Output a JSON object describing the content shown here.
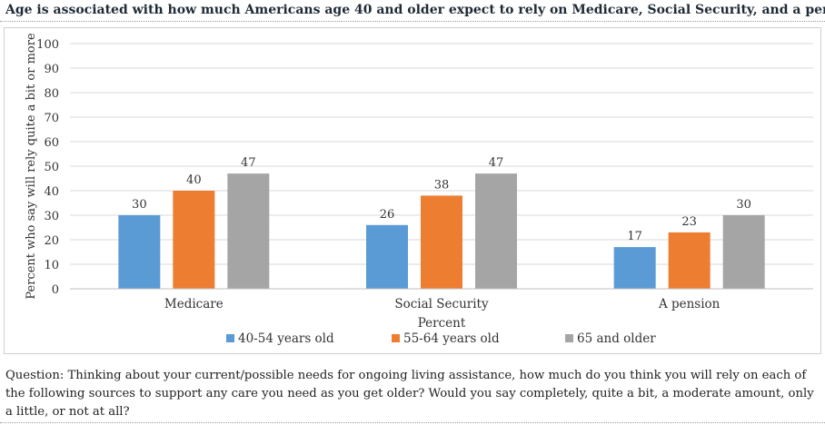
{
  "header": {
    "title": "Age is associated with how much Americans age 40 and older expect to rely on Medicare, Social Security, and a pension."
  },
  "chart_data": {
    "type": "bar",
    "categories": [
      "Medicare",
      "Social Security",
      "A pension"
    ],
    "series": [
      {
        "name": "40-54 years old",
        "values": [
          30,
          26,
          17
        ],
        "color": "#5B9BD5"
      },
      {
        "name": "55-64  years old",
        "values": [
          40,
          38,
          23
        ],
        "color": "#ED7D31"
      },
      {
        "name": "65 and older",
        "values": [
          47,
          47,
          30
        ],
        "color": "#A5A5A5"
      }
    ],
    "xlabel": "Percent",
    "ylabel": "Percent who say will rely quite a bit or more",
    "ylim": [
      0,
      100
    ],
    "yticks": [
      0,
      10,
      20,
      30,
      40,
      50,
      60,
      70,
      80,
      90,
      100
    ],
    "grid": true,
    "legend_position": "bottom",
    "data_labels": true
  },
  "footer": {
    "question": "Question: Thinking about your current/possible needs for ongoing living assistance, how much do you think you will rely on each of the following sources to support any care you need as you get older? Would you say completely, quite a bit, a moderate amount, only a little, or not at all?"
  }
}
